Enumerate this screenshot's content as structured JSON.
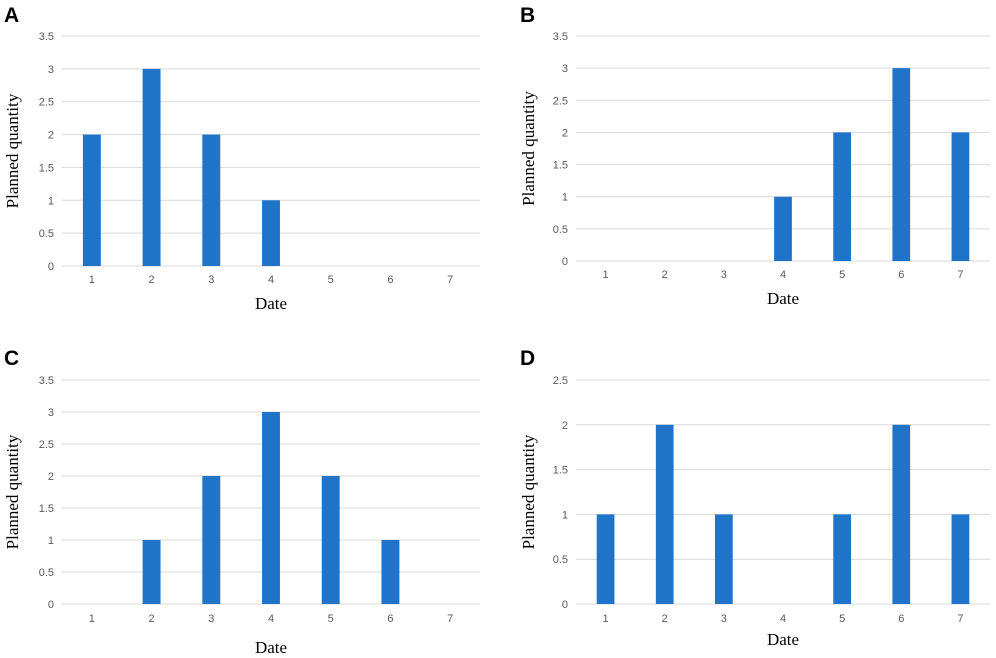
{
  "colors": {
    "bar": "#1f74c9",
    "grid": "#d9d9d9",
    "tick_text": "#595959"
  },
  "chart_data": [
    {
      "panel": "A",
      "type": "bar",
      "categories": [
        "1",
        "2",
        "3",
        "4",
        "5",
        "6",
        "7"
      ],
      "values": [
        2,
        3,
        2,
        1,
        0,
        0,
        0
      ],
      "ylim": [
        0,
        3.5
      ],
      "yticks": [
        "0",
        "0.5",
        "1",
        "1.5",
        "2",
        "2.5",
        "3",
        "3.5"
      ],
      "xlabel": "Date",
      "ylabel": "Planned quantity",
      "grid": true
    },
    {
      "panel": "B",
      "type": "bar",
      "categories": [
        "1",
        "2",
        "3",
        "4",
        "5",
        "6",
        "7"
      ],
      "values": [
        0,
        0,
        0,
        1,
        2,
        3,
        2
      ],
      "ylim": [
        0,
        3.5
      ],
      "yticks": [
        "0",
        "0.5",
        "1",
        "1.5",
        "2",
        "2.5",
        "3",
        "3.5"
      ],
      "xlabel": "Date",
      "ylabel": "Planned quantity",
      "grid": true
    },
    {
      "panel": "C",
      "type": "bar",
      "categories": [
        "1",
        "2",
        "3",
        "4",
        "5",
        "6",
        "7"
      ],
      "values": [
        0,
        1,
        2,
        3,
        2,
        1,
        0
      ],
      "ylim": [
        0,
        3.5
      ],
      "yticks": [
        "0",
        "0.5",
        "1",
        "1.5",
        "2",
        "2.5",
        "3",
        "3.5"
      ],
      "xlabel": "Date",
      "ylabel": "Planned quantity",
      "grid": true
    },
    {
      "panel": "D",
      "type": "bar",
      "categories": [
        "1",
        "2",
        "3",
        "4",
        "5",
        "6",
        "7"
      ],
      "values": [
        1,
        2,
        1,
        0,
        1,
        2,
        1
      ],
      "ylim": [
        0,
        2.5
      ],
      "yticks": [
        "0",
        "0.5",
        "1",
        "1.5",
        "2",
        "2.5"
      ],
      "xlabel": "Date",
      "ylabel": "Planned quantity",
      "grid": true
    }
  ]
}
